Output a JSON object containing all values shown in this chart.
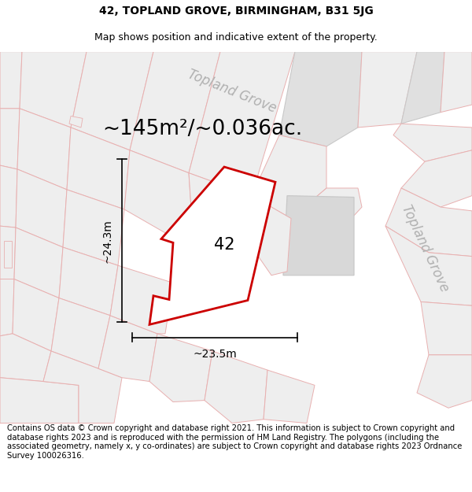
{
  "title_line1": "42, TOPLAND GROVE, BIRMINGHAM, B31 5JG",
  "title_line2": "Map shows position and indicative extent of the property.",
  "area_text": "~145m²/~0.036ac.",
  "label_42": "42",
  "dim_height": "~24.3m",
  "dim_width": "~23.5m",
  "road_label_top": "Topland Grove",
  "road_label_right": "Topland Grove",
  "footer_text": "Contains OS data © Crown copyright and database right 2021. This information is subject to Crown copyright and database rights 2023 and is reproduced with the permission of HM Land Registry. The polygons (including the associated geometry, namely x, y co-ordinates) are subject to Crown copyright and database rights 2023 Ordnance Survey 100026316.",
  "bg_color": "#f5f3f3",
  "highlight_color": "#cc0000",
  "parcel_fill": "#ebebeb",
  "parcel_edge_pink": "#e8b0b0",
  "parcel_edge_gray": "#c8c8c8",
  "title_fontsize": 10,
  "subtitle_fontsize": 9,
  "area_fontsize": 19,
  "label_fontsize": 15,
  "dim_fontsize": 10,
  "road_fontsize": 12,
  "footer_fontsize": 7.2
}
